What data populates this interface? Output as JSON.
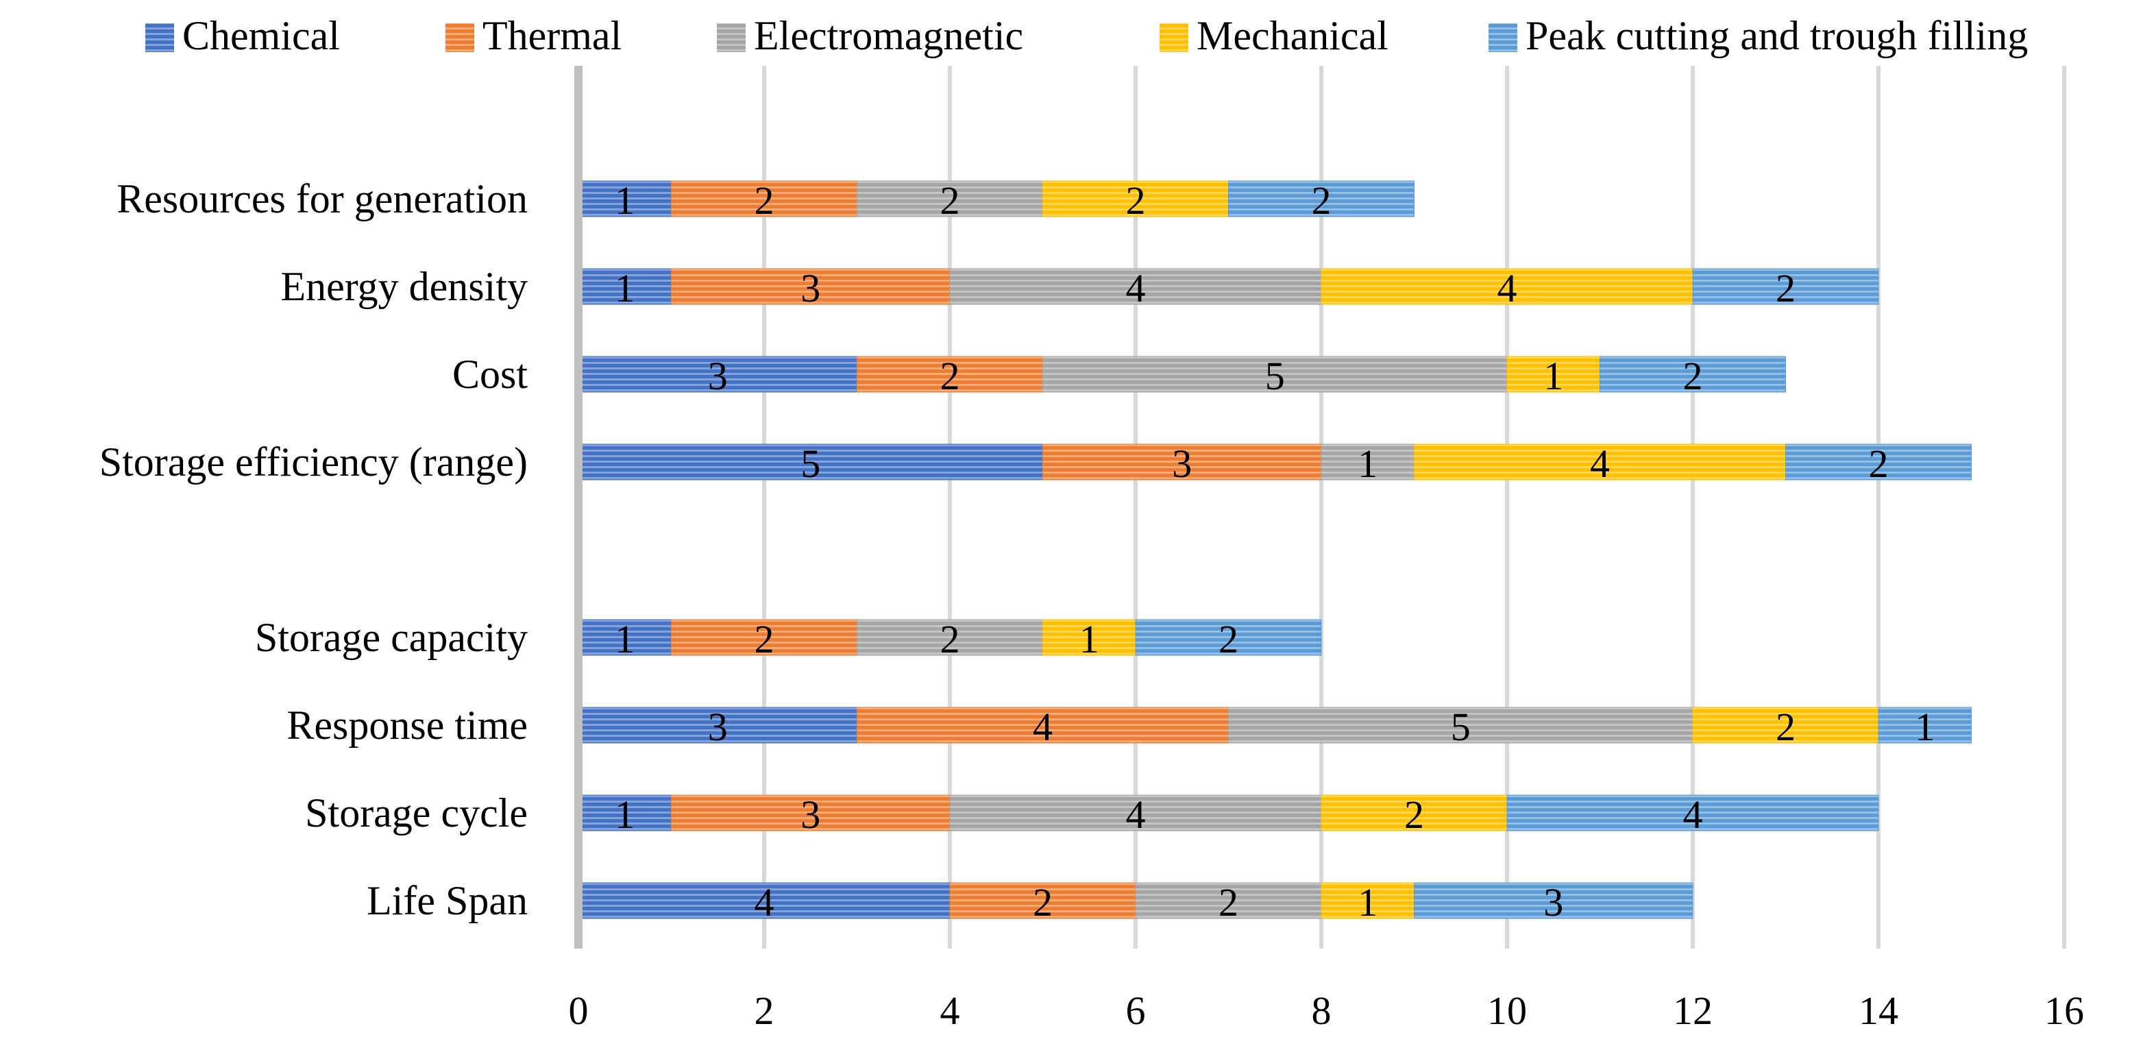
{
  "chart_data": {
    "type": "bar",
    "orientation": "horizontal",
    "stacked": true,
    "title": "",
    "xlabel": "",
    "ylabel": "",
    "xlim": [
      0,
      16
    ],
    "xticks": [
      0,
      2,
      4,
      6,
      8,
      10,
      12,
      14,
      16
    ],
    "grid": true,
    "legend_position": "top",
    "categories": [
      "Resources for generation",
      "Energy density",
      "Cost",
      "Storage efficiency (range)",
      "",
      "Storage capacity",
      "Response time",
      "Storage cycle",
      "Life Span"
    ],
    "series": [
      {
        "name": "Chemical",
        "color": "#4472c4",
        "values": [
          1,
          1,
          3,
          5,
          null,
          1,
          3,
          1,
          4
        ]
      },
      {
        "name": "Thermal",
        "color": "#ed7d31",
        "values": [
          2,
          3,
          2,
          3,
          null,
          2,
          4,
          3,
          2
        ]
      },
      {
        "name": "Electromagnetic",
        "color": "#a5a5a5",
        "values": [
          2,
          4,
          5,
          1,
          null,
          2,
          5,
          4,
          2
        ]
      },
      {
        "name": "Mechanical",
        "color": "#ffc000",
        "values": [
          2,
          4,
          1,
          4,
          null,
          1,
          2,
          2,
          1
        ]
      },
      {
        "name": "Peak cutting and trough filling",
        "color": "#5b9bd5",
        "values": [
          2,
          2,
          2,
          2,
          null,
          2,
          1,
          4,
          3
        ]
      }
    ]
  }
}
